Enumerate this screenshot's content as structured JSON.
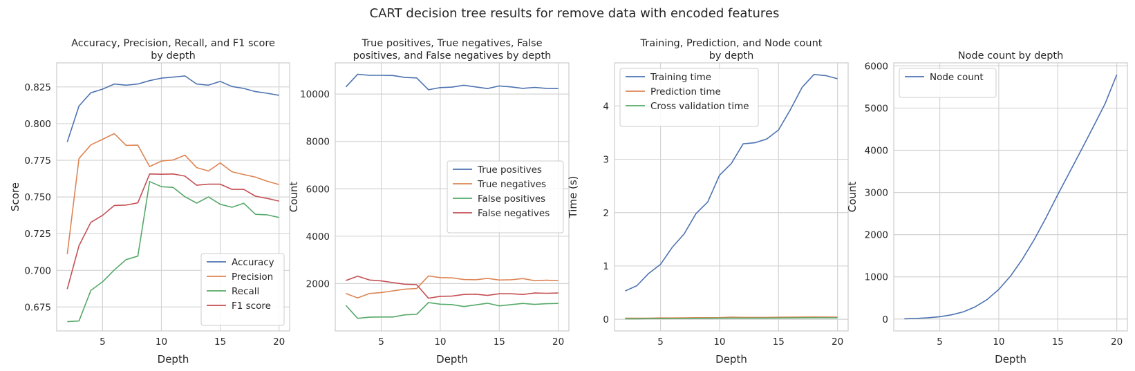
{
  "figure": {
    "suptitle": "CART decision tree results for remove data with encoded features"
  },
  "colors": {
    "blue": "#4c72b0",
    "orange": "#dd8452",
    "green": "#55a868",
    "red": "#c44e52",
    "grid": "#d3d3d3",
    "spine": "#cccccc",
    "text": "#262626"
  },
  "chart_data": [
    {
      "type": "line",
      "title": [
        "Accuracy, Precision, Recall, and F1 score",
        "by depth"
      ],
      "xlabel": "Depth",
      "ylabel": "Score",
      "xlim": [
        1.1,
        20.9
      ],
      "ylim": [
        0.6587,
        0.8414
      ],
      "xticks": [
        5,
        10,
        15,
        20
      ],
      "yticks": [
        0.675,
        0.7,
        0.725,
        0.75,
        0.775,
        0.8,
        0.825
      ],
      "ytick_labels": [
        "0.675",
        "0.700",
        "0.725",
        "0.750",
        "0.775",
        "0.800",
        "0.825"
      ],
      "legend_position": "lower-right",
      "x": [
        2,
        3,
        4,
        5,
        6,
        7,
        8,
        9,
        10,
        11,
        12,
        13,
        14,
        15,
        16,
        17,
        18,
        19,
        20
      ],
      "series": [
        {
          "name": "Accuracy",
          "color": "blue",
          "values": [
            0.7875,
            0.812,
            0.821,
            0.8235,
            0.827,
            0.8262,
            0.827,
            0.8293,
            0.831,
            0.8317,
            0.8325,
            0.827,
            0.8262,
            0.8288,
            0.8253,
            0.824,
            0.8218,
            0.8207,
            0.8193
          ]
        },
        {
          "name": "Precision",
          "color": "orange",
          "values": [
            0.711,
            0.7763,
            0.7855,
            0.7893,
            0.7932,
            0.7852,
            0.7853,
            0.7707,
            0.7745,
            0.7752,
            0.7785,
            0.77,
            0.7677,
            0.7732,
            0.7672,
            0.7653,
            0.7635,
            0.7607,
            0.7585
          ]
        },
        {
          "name": "Recall",
          "color": "green",
          "values": [
            0.665,
            0.6655,
            0.6863,
            0.6922,
            0.7003,
            0.7073,
            0.7097,
            0.7605,
            0.757,
            0.7565,
            0.7502,
            0.7458,
            0.75,
            0.745,
            0.743,
            0.7457,
            0.7382,
            0.7378,
            0.736
          ]
        },
        {
          "name": "F1 score",
          "color": "red",
          "values": [
            0.6873,
            0.7168,
            0.7327,
            0.7375,
            0.7442,
            0.7445,
            0.746,
            0.7657,
            0.7655,
            0.7657,
            0.7642,
            0.758,
            0.7587,
            0.7587,
            0.7552,
            0.7552,
            0.7505,
            0.749,
            0.7472
          ]
        }
      ]
    },
    {
      "type": "line",
      "title": [
        "True positives, True negatives, False",
        "positives, and False negatives by depth"
      ],
      "xlabel": "Depth",
      "ylabel": "Count",
      "xlim": [
        1.1,
        20.9
      ],
      "ylim": [
        0,
        11315
      ],
      "xticks": [
        5,
        10,
        15,
        20
      ],
      "yticks": [
        2000,
        4000,
        6000,
        8000,
        10000
      ],
      "ytick_labels": [
        "2000",
        "4000",
        "6000",
        "8000",
        "10000"
      ],
      "legend_position": "center-right",
      "x": [
        2,
        3,
        4,
        5,
        6,
        7,
        8,
        9,
        10,
        11,
        12,
        13,
        14,
        15,
        16,
        17,
        18,
        19,
        20
      ],
      "series": [
        {
          "name": "True positives",
          "color": "blue",
          "values": [
            10300,
            10830,
            10790,
            10790,
            10780,
            10700,
            10680,
            10180,
            10270,
            10290,
            10370,
            10300,
            10230,
            10340,
            10300,
            10240,
            10280,
            10240,
            10230
          ]
        },
        {
          "name": "True negatives",
          "color": "orange",
          "values": [
            1580,
            1390,
            1580,
            1620,
            1690,
            1760,
            1790,
            2320,
            2250,
            2240,
            2170,
            2160,
            2220,
            2150,
            2160,
            2210,
            2120,
            2140,
            2120
          ]
        },
        {
          "name": "False positives",
          "color": "green",
          "values": [
            1080,
            530,
            580,
            590,
            590,
            680,
            700,
            1200,
            1130,
            1110,
            1030,
            1100,
            1170,
            1060,
            1110,
            1160,
            1120,
            1150,
            1160
          ]
        },
        {
          "name": "False negatives",
          "color": "red",
          "values": [
            2130,
            2310,
            2150,
            2110,
            2040,
            1970,
            1950,
            1380,
            1460,
            1470,
            1540,
            1550,
            1500,
            1570,
            1570,
            1540,
            1600,
            1590,
            1600
          ]
        }
      ]
    },
    {
      "type": "line",
      "title": [
        "Training, Prediction, and Node count",
        "by depth"
      ],
      "xlabel": "Depth",
      "ylabel": "Time (s)",
      "xlim": [
        1.1,
        20.9
      ],
      "ylim": [
        -0.2185,
        4.808
      ],
      "xticks": [
        5,
        10,
        15,
        20
      ],
      "yticks": [
        0,
        1,
        2,
        3,
        4
      ],
      "ytick_labels": [
        "0",
        "1",
        "2",
        "3",
        "4"
      ],
      "legend_position": "upper-left",
      "x": [
        2,
        3,
        4,
        5,
        6,
        7,
        8,
        9,
        10,
        11,
        12,
        13,
        14,
        15,
        16,
        17,
        18,
        19,
        20
      ],
      "series": [
        {
          "name": "Training time",
          "color": "blue",
          "values": [
            0.53,
            0.63,
            0.86,
            1.03,
            1.35,
            1.6,
            1.98,
            2.2,
            2.7,
            2.92,
            3.29,
            3.31,
            3.38,
            3.55,
            3.93,
            4.35,
            4.59,
            4.57,
            4.51
          ]
        },
        {
          "name": "Prediction time",
          "color": "orange",
          "values": [
            0.02,
            0.02,
            0.02,
            0.025,
            0.025,
            0.028,
            0.03,
            0.03,
            0.032,
            0.04,
            0.035,
            0.035,
            0.035,
            0.038,
            0.04,
            0.042,
            0.043,
            0.042,
            0.04
          ]
        },
        {
          "name": "Cross validation time",
          "color": "green",
          "values": [
            0.01,
            0.01,
            0.012,
            0.012,
            0.015,
            0.015,
            0.018,
            0.018,
            0.02,
            0.022,
            0.022,
            0.022,
            0.023,
            0.024,
            0.025,
            0.026,
            0.027,
            0.027,
            0.028
          ]
        }
      ]
    },
    {
      "type": "line",
      "title": [
        "Node count by depth"
      ],
      "xlabel": "Depth",
      "ylabel": "Count",
      "xlim": [
        1.1,
        20.9
      ],
      "ylim": [
        -282,
        6072
      ],
      "xticks": [
        5,
        10,
        15,
        20
      ],
      "yticks": [
        0,
        1000,
        2000,
        3000,
        4000,
        5000,
        6000
      ],
      "ytick_labels": [
        "0",
        "1000",
        "2000",
        "3000",
        "4000",
        "5000",
        "6000"
      ],
      "legend_position": "upper-left",
      "x": [
        2,
        3,
        4,
        5,
        6,
        7,
        8,
        9,
        10,
        11,
        12,
        13,
        14,
        15,
        16,
        17,
        18,
        19,
        20
      ],
      "series": [
        {
          "name": "Node count",
          "color": "blue",
          "values": [
            7,
            15,
            31,
            55,
            100,
            170,
            290,
            460,
            700,
            1020,
            1420,
            1880,
            2400,
            2950,
            3480,
            4010,
            4550,
            5100,
            5790
          ]
        }
      ]
    }
  ]
}
